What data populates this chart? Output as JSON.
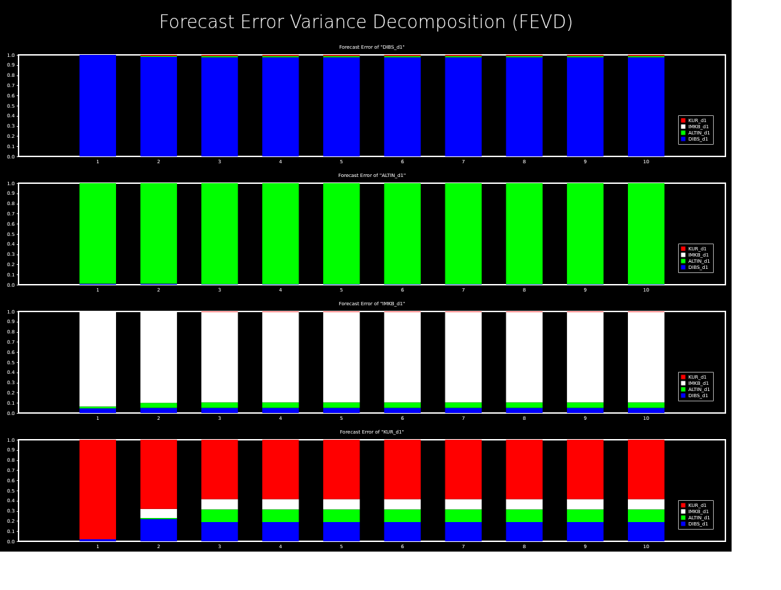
{
  "chart_data": [
    {
      "type": "bar",
      "title": "Forecast Error Variance Decomposition (FEVD)",
      "subtitle": "Forecast Error of \"DIBS_d1\"",
      "stacked": true,
      "categories": [
        "1",
        "2",
        "3",
        "4",
        "5",
        "6",
        "7",
        "8",
        "9",
        "10"
      ],
      "series": [
        {
          "name": "DIBS_d1",
          "color": "#0000ff",
          "values": [
            1.0,
            0.98,
            0.977,
            0.977,
            0.977,
            0.977,
            0.977,
            0.977,
            0.977,
            0.977
          ]
        },
        {
          "name": "ALTIN_d1",
          "color": "#00ff00",
          "values": [
            0.0,
            0.01,
            0.013,
            0.013,
            0.013,
            0.013,
            0.013,
            0.013,
            0.013,
            0.013
          ]
        },
        {
          "name": "IMKB_d1",
          "color": "#ffffff",
          "values": [
            0.0,
            0.0,
            0.0,
            0.0,
            0.0,
            0.0,
            0.0,
            0.0,
            0.0,
            0.0
          ]
        },
        {
          "name": "KUR_d1",
          "color": "#ff0000",
          "values": [
            0.0,
            0.01,
            0.01,
            0.01,
            0.01,
            0.01,
            0.01,
            0.01,
            0.01,
            0.01
          ]
        }
      ],
      "ylim": [
        0,
        1
      ],
      "yticks": [
        {
          "value": 0,
          "label": "0.0"
        },
        {
          "value": 0.1,
          "label": "0.1"
        },
        {
          "value": 0.2,
          "label": "0.2"
        },
        {
          "value": 0.3,
          "label": "0.3"
        },
        {
          "value": 0.4,
          "label": "0.4"
        },
        {
          "value": 0.5,
          "label": "0.5"
        },
        {
          "value": 0.6,
          "label": "0.6"
        },
        {
          "value": 0.7,
          "label": "0.7"
        },
        {
          "value": 0.8,
          "label": "0.8"
        },
        {
          "value": 0.9,
          "label": "0.9"
        },
        {
          "value": 1,
          "label": "1.0"
        }
      ],
      "grid": false,
      "legend": "bottom right"
    },
    {
      "type": "bar",
      "subtitle": "Forecast Error of \"ALTIN_d1\"",
      "stacked": true,
      "categories": [
        "1",
        "2",
        "3",
        "4",
        "5",
        "6",
        "7",
        "8",
        "9",
        "10"
      ],
      "series": [
        {
          "name": "DIBS_d1",
          "color": "#0000ff",
          "values": [
            0.01,
            0.01,
            0.005,
            0.005,
            0.005,
            0.005,
            0.005,
            0.005,
            0.005,
            0.005
          ]
        },
        {
          "name": "ALTIN_d1",
          "color": "#00ff00",
          "values": [
            0.99,
            0.99,
            0.995,
            0.995,
            0.995,
            0.995,
            0.995,
            0.995,
            0.995,
            0.995
          ]
        },
        {
          "name": "IMKB_d1",
          "color": "#ffffff",
          "values": [
            0.0,
            0.0,
            0.0,
            0.0,
            0.0,
            0.0,
            0.0,
            0.0,
            0.0,
            0.0
          ]
        },
        {
          "name": "KUR_d1",
          "color": "#ff0000",
          "values": [
            0.0,
            0.0,
            0.0,
            0.0,
            0.0,
            0.0,
            0.0,
            0.0,
            0.0,
            0.0
          ]
        }
      ],
      "ylim": [
        0,
        1
      ],
      "yticks": [
        {
          "value": 0,
          "label": "0.0"
        },
        {
          "value": 0.1,
          "label": "0.1"
        },
        {
          "value": 0.2,
          "label": "0.2"
        },
        {
          "value": 0.3,
          "label": "0.3"
        },
        {
          "value": 0.4,
          "label": "0.4"
        },
        {
          "value": 0.5,
          "label": "0.5"
        },
        {
          "value": 0.6,
          "label": "0.6"
        },
        {
          "value": 0.7,
          "label": "0.7"
        },
        {
          "value": 0.8,
          "label": "0.8"
        },
        {
          "value": 0.9,
          "label": "0.9"
        },
        {
          "value": 1,
          "label": "1.0"
        }
      ],
      "grid": false,
      "legend": "bottom right"
    },
    {
      "type": "bar",
      "subtitle": "Forecast Error of \"IMKB_d1\"",
      "stacked": true,
      "categories": [
        "1",
        "2",
        "3",
        "4",
        "5",
        "6",
        "7",
        "8",
        "9",
        "10"
      ],
      "series": [
        {
          "name": "DIBS_d1",
          "color": "#0000ff",
          "values": [
            0.045,
            0.05,
            0.05,
            0.05,
            0.05,
            0.05,
            0.05,
            0.05,
            0.05,
            0.05
          ]
        },
        {
          "name": "ALTIN_d1",
          "color": "#00ff00",
          "values": [
            0.02,
            0.05,
            0.055,
            0.055,
            0.055,
            0.055,
            0.055,
            0.055,
            0.055,
            0.055
          ]
        },
        {
          "name": "IMKB_d1",
          "color": "#ffffff",
          "values": [
            0.935,
            0.9,
            0.89,
            0.89,
            0.89,
            0.89,
            0.89,
            0.89,
            0.89,
            0.89
          ]
        },
        {
          "name": "KUR_d1",
          "color": "#ff0000",
          "values": [
            0.0,
            0.0,
            0.005,
            0.005,
            0.005,
            0.005,
            0.005,
            0.005,
            0.005,
            0.005
          ]
        }
      ],
      "ylim": [
        0,
        1
      ],
      "yticks": [
        {
          "value": 0,
          "label": "0.0"
        },
        {
          "value": 0.1,
          "label": "0.1"
        },
        {
          "value": 0.2,
          "label": "0.2"
        },
        {
          "value": 0.3,
          "label": "0.3"
        },
        {
          "value": 0.4,
          "label": "0.4"
        },
        {
          "value": 0.5,
          "label": "0.5"
        },
        {
          "value": 0.6,
          "label": "0.6"
        },
        {
          "value": 0.7,
          "label": "0.7"
        },
        {
          "value": 0.8,
          "label": "0.8"
        },
        {
          "value": 0.9,
          "label": "0.9"
        },
        {
          "value": 1,
          "label": "1.0"
        }
      ],
      "grid": false,
      "legend": "bottom right"
    },
    {
      "type": "bar",
      "subtitle": "Forecast Error of \"KUR_d1\"",
      "stacked": true,
      "categories": [
        "1",
        "2",
        "3",
        "4",
        "5",
        "6",
        "7",
        "8",
        "9",
        "10"
      ],
      "series": [
        {
          "name": "DIBS_d1",
          "color": "#0000ff",
          "values": [
            0.02,
            0.22,
            0.19,
            0.19,
            0.19,
            0.19,
            0.19,
            0.19,
            0.19,
            0.19
          ]
        },
        {
          "name": "ALTIN_d1",
          "color": "#00ff00",
          "values": [
            0.0,
            0.01,
            0.125,
            0.125,
            0.125,
            0.125,
            0.125,
            0.125,
            0.125,
            0.125
          ]
        },
        {
          "name": "IMKB_d1",
          "color": "#ffffff",
          "values": [
            0.0,
            0.09,
            0.1,
            0.1,
            0.1,
            0.1,
            0.1,
            0.1,
            0.1,
            0.1
          ]
        },
        {
          "name": "KUR_d1",
          "color": "#ff0000",
          "values": [
            0.98,
            0.68,
            0.585,
            0.585,
            0.585,
            0.585,
            0.585,
            0.585,
            0.585,
            0.585
          ]
        }
      ],
      "ylim": [
        0,
        1
      ],
      "yticks": [
        {
          "value": 0,
          "label": "0.0"
        },
        {
          "value": 0.1,
          "label": "0.1"
        },
        {
          "value": 0.2,
          "label": "0.2"
        },
        {
          "value": 0.3,
          "label": "0.3"
        },
        {
          "value": 0.4,
          "label": "0.4"
        },
        {
          "value": 0.5,
          "label": "0.5"
        },
        {
          "value": 0.6,
          "label": "0.6"
        },
        {
          "value": 0.7,
          "label": "0.7"
        },
        {
          "value": 0.8,
          "label": "0.8"
        },
        {
          "value": 0.9,
          "label": "0.9"
        },
        {
          "value": 1,
          "label": "1.0"
        }
      ],
      "grid": false,
      "legend": "bottom right"
    }
  ]
}
